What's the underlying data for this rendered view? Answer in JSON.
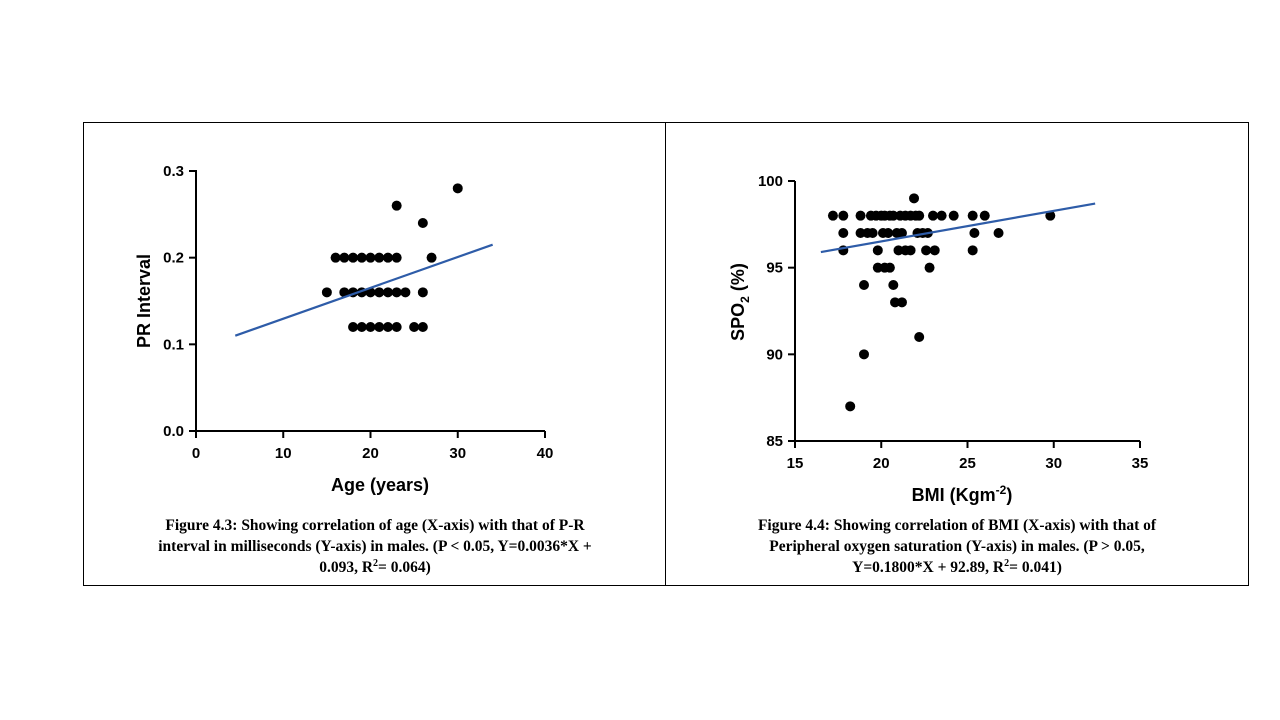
{
  "chart_data": [
    {
      "type": "scatter",
      "xlabel": "Age (years)",
      "ylabel": "PR Interval",
      "xlim": [
        0,
        40
      ],
      "ylim": [
        0,
        0.3
      ],
      "xticks": [
        "0",
        "10",
        "20",
        "30",
        "40"
      ],
      "yticks": [
        "0.0",
        "0.1",
        "0.2",
        "0.3"
      ],
      "points": [
        [
          15,
          0.16
        ],
        [
          16,
          0.2
        ],
        [
          17,
          0.2
        ],
        [
          17,
          0.16
        ],
        [
          18,
          0.2
        ],
        [
          18,
          0.16
        ],
        [
          18,
          0.12
        ],
        [
          19,
          0.2
        ],
        [
          19,
          0.16
        ],
        [
          19,
          0.12
        ],
        [
          20,
          0.2
        ],
        [
          20,
          0.16
        ],
        [
          20,
          0.12
        ],
        [
          21,
          0.2
        ],
        [
          21,
          0.16
        ],
        [
          21,
          0.12
        ],
        [
          22,
          0.2
        ],
        [
          22,
          0.16
        ],
        [
          22,
          0.12
        ],
        [
          23,
          0.26
        ],
        [
          23,
          0.2
        ],
        [
          23,
          0.16
        ],
        [
          23,
          0.12
        ],
        [
          24,
          0.16
        ],
        [
          25,
          0.12
        ],
        [
          26,
          0.24
        ],
        [
          26,
          0.16
        ],
        [
          26,
          0.12
        ],
        [
          27,
          0.2
        ],
        [
          30,
          0.28
        ]
      ],
      "trendline": {
        "x": [
          4.5,
          34
        ],
        "y": [
          0.11,
          0.215
        ],
        "color": "#2e5ca8"
      },
      "caption": {
        "line1": "Figure 4.3: Showing correlation of age (X-axis) with that of P-R",
        "line2": "interval in milliseconds (Y-axis) in males. (P < 0.05, Y=0.0036*X +",
        "line3a": "0.093, R",
        "sup": "2",
        "line3b": "= 0.064)"
      }
    },
    {
      "type": "scatter",
      "xlabel_main": "BMI (Kgm",
      "xlabel_sup": "-2",
      "xlabel_end": ")",
      "ylabel_main": "SPO",
      "ylabel_sub": "2",
      "ylabel_end": " (%)",
      "xlim": [
        15,
        35
      ],
      "ylim": [
        85,
        100
      ],
      "xticks": [
        "15",
        "20",
        "25",
        "30",
        "35"
      ],
      "yticks": [
        "85",
        "90",
        "95",
        "100"
      ],
      "points": [
        [
          17.2,
          98
        ],
        [
          17.8,
          98
        ],
        [
          17.8,
          97
        ],
        [
          17.8,
          96
        ],
        [
          18.2,
          87
        ],
        [
          18.8,
          98
        ],
        [
          18.8,
          97
        ],
        [
          19.0,
          94
        ],
        [
          19.0,
          90
        ],
        [
          19.2,
          97
        ],
        [
          19.4,
          98
        ],
        [
          19.5,
          97
        ],
        [
          19.7,
          98
        ],
        [
          19.8,
          96
        ],
        [
          19.8,
          95
        ],
        [
          20.0,
          98
        ],
        [
          20.1,
          97
        ],
        [
          20.2,
          95
        ],
        [
          20.2,
          98
        ],
        [
          20.4,
          97
        ],
        [
          20.5,
          95
        ],
        [
          20.5,
          98
        ],
        [
          20.7,
          94
        ],
        [
          20.7,
          98
        ],
        [
          20.8,
          93
        ],
        [
          20.9,
          97
        ],
        [
          21.0,
          96
        ],
        [
          21.1,
          98
        ],
        [
          21.2,
          93
        ],
        [
          21.2,
          97
        ],
        [
          21.4,
          96
        ],
        [
          21.4,
          98
        ],
        [
          21.7,
          96
        ],
        [
          21.7,
          98
        ],
        [
          21.9,
          99
        ],
        [
          22.0,
          98
        ],
        [
          22.1,
          97
        ],
        [
          22.2,
          91
        ],
        [
          22.2,
          98
        ],
        [
          22.4,
          97
        ],
        [
          22.6,
          96
        ],
        [
          22.7,
          97
        ],
        [
          22.8,
          95
        ],
        [
          23.0,
          98
        ],
        [
          23.1,
          96
        ],
        [
          23.5,
          98
        ],
        [
          24.2,
          98
        ],
        [
          25.3,
          98
        ],
        [
          25.3,
          96
        ],
        [
          25.4,
          97
        ],
        [
          26.0,
          98
        ],
        [
          26.8,
          97
        ],
        [
          29.8,
          98
        ]
      ],
      "trendline": {
        "x": [
          16.5,
          32.4
        ],
        "y": [
          95.9,
          98.7
        ],
        "color": "#2e5ca8"
      },
      "caption": {
        "line1": "Figure 4.4: Showing correlation of BMI (X-axis) with that of",
        "line2": "Peripheral oxygen saturation (Y-axis) in males. (P > 0.05,",
        "line3a": "Y=0.1800*X + 92.89, R",
        "sup": "2",
        "line3b": "= 0.041)"
      }
    }
  ]
}
